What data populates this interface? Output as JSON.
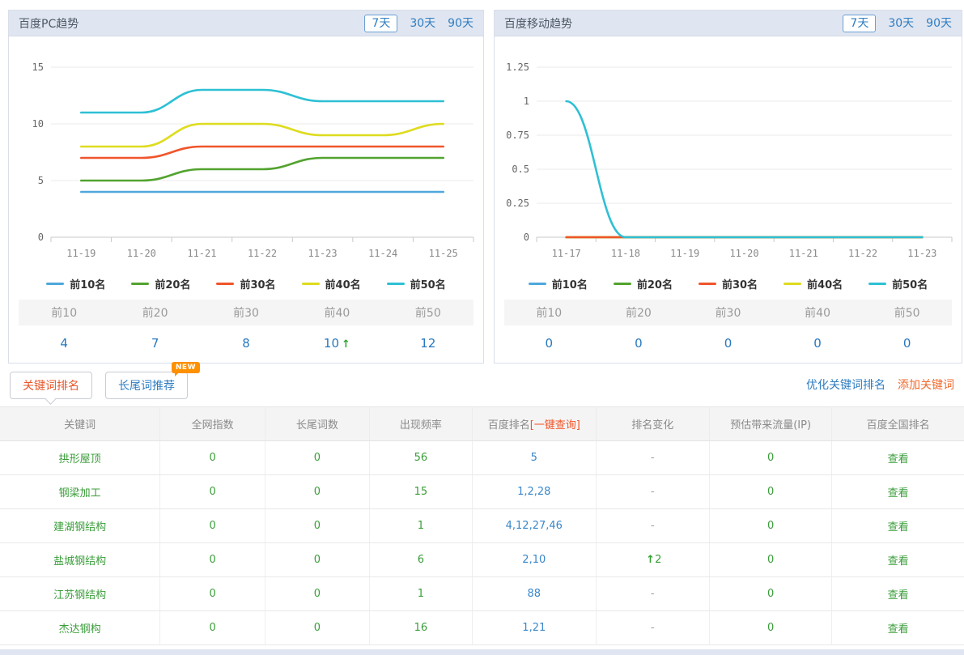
{
  "panels": [
    {
      "title": "百度PC趋势",
      "range_buttons": [
        {
          "label": "7天",
          "active": true
        },
        {
          "label": "30天",
          "active": false
        },
        {
          "label": "90天",
          "active": false
        }
      ],
      "chart_index": 0,
      "summary": {
        "headers": [
          "前10",
          "前20",
          "前30",
          "前40",
          "前50"
        ],
        "values": [
          {
            "text": "4"
          },
          {
            "text": "7"
          },
          {
            "text": "8"
          },
          {
            "text": "10",
            "arrow": "up"
          },
          {
            "text": "12"
          }
        ]
      }
    },
    {
      "title": "百度移动趋势",
      "range_buttons": [
        {
          "label": "7天",
          "active": true
        },
        {
          "label": "30天",
          "active": false
        },
        {
          "label": "90天",
          "active": false
        }
      ],
      "chart_index": 1,
      "summary": {
        "headers": [
          "前10",
          "前20",
          "前30",
          "前40",
          "前50"
        ],
        "values": [
          {
            "text": "0"
          },
          {
            "text": "0"
          },
          {
            "text": "0"
          },
          {
            "text": "0"
          },
          {
            "text": "0"
          }
        ]
      }
    }
  ],
  "chart_data": [
    {
      "type": "line",
      "title": "百度PC趋势",
      "categories": [
        "11-19",
        "11-20",
        "11-21",
        "11-22",
        "11-23",
        "11-24",
        "11-25"
      ],
      "yticks": [
        0,
        5,
        10,
        15
      ],
      "ylim": [
        0,
        15
      ],
      "grid": true,
      "legend_position": "bottom",
      "series": [
        {
          "name": "前10名",
          "color": "#4fa8dc",
          "values": [
            4,
            4,
            4,
            4,
            4,
            4,
            4
          ]
        },
        {
          "name": "前20名",
          "color": "#52a32f",
          "values": [
            5,
            5,
            6,
            6,
            7,
            7,
            7
          ]
        },
        {
          "name": "前30名",
          "color": "#f0552b",
          "values": [
            7,
            7,
            8,
            8,
            8,
            8,
            8
          ]
        },
        {
          "name": "前40名",
          "color": "#dedc1f",
          "values": [
            8,
            8,
            10,
            10,
            9,
            9,
            10
          ]
        },
        {
          "name": "前50名",
          "color": "#2ec0d4",
          "values": [
            11,
            11,
            13,
            13,
            12,
            12,
            12
          ]
        }
      ],
      "draw_order": [
        0,
        1,
        2,
        3,
        4
      ]
    },
    {
      "type": "line",
      "title": "百度移动趋势",
      "categories": [
        "11-17",
        "11-18",
        "11-19",
        "11-20",
        "11-21",
        "11-22",
        "11-23"
      ],
      "yticks": [
        0,
        0.25,
        0.5,
        0.75,
        1,
        1.25
      ],
      "ylim": [
        0,
        1.25
      ],
      "grid": true,
      "legend_position": "bottom",
      "series": [
        {
          "name": "前10名",
          "color": "#4fa8dc",
          "values": [
            0,
            0,
            0,
            0,
            0,
            0,
            0
          ]
        },
        {
          "name": "前20名",
          "color": "#52a32f",
          "values": [
            0,
            0,
            0,
            0,
            0,
            0,
            0
          ]
        },
        {
          "name": "前30名",
          "color": "#f0552b",
          "values": [
            0,
            0,
            0,
            0,
            0,
            0,
            0
          ]
        },
        {
          "name": "前40名",
          "color": "#dedc1f",
          "values": [
            0,
            0,
            0,
            0,
            0,
            0,
            0
          ]
        },
        {
          "name": "前50名",
          "color": "#2ec0d4",
          "values": [
            1,
            0,
            0,
            0,
            0,
            0,
            0
          ]
        }
      ],
      "draw_order": [
        0,
        1,
        3,
        2,
        4
      ]
    }
  ],
  "keyword_section": {
    "tabs": [
      {
        "label": "关键词排名",
        "active": true
      },
      {
        "label": "长尾词推荐",
        "active": false,
        "badge": "NEW"
      }
    ],
    "actions": [
      {
        "label": "优化关键词排名",
        "style": "blue"
      },
      {
        "label": "添加关键词",
        "style": "orange"
      }
    ],
    "table": {
      "headers": [
        {
          "text": "关键词"
        },
        {
          "text": "全网指数"
        },
        {
          "text": "长尾词数"
        },
        {
          "text": "出现频率"
        },
        {
          "text": "百度排名",
          "highlight": "[一键查询]"
        },
        {
          "text": "排名变化"
        },
        {
          "text": "预估带来流量(IP)"
        },
        {
          "text": "百度全国排名"
        }
      ],
      "col_widths": [
        "16.6%",
        "10.9%",
        "10.8%",
        "10.7%",
        "12.8%",
        "11.8%",
        "12.7%",
        "13.7%"
      ],
      "rows": [
        {
          "keyword": "拱形屋顶",
          "index": "0",
          "longtail": "0",
          "frequency": "56",
          "baidu_rank": "5",
          "change": {
            "text": "-"
          },
          "traffic": "0",
          "action": "查看"
        },
        {
          "keyword": "钢梁加工",
          "index": "0",
          "longtail": "0",
          "frequency": "15",
          "baidu_rank": "1,2,28",
          "change": {
            "text": "-"
          },
          "traffic": "0",
          "action": "查看"
        },
        {
          "keyword": "建湖钢结构",
          "index": "0",
          "longtail": "0",
          "frequency": "1",
          "baidu_rank": "4,12,27,46",
          "change": {
            "text": "-"
          },
          "traffic": "0",
          "action": "查看"
        },
        {
          "keyword": "盐城钢结构",
          "index": "0",
          "longtail": "0",
          "frequency": "6",
          "baidu_rank": "2,10",
          "change": {
            "text": "2",
            "arrow": "up"
          },
          "traffic": "0",
          "action": "查看"
        },
        {
          "keyword": "江苏钢结构",
          "index": "0",
          "longtail": "0",
          "frequency": "1",
          "baidu_rank": "88",
          "change": {
            "text": "-"
          },
          "traffic": "0",
          "action": "查看"
        },
        {
          "keyword": "杰达钢构",
          "index": "0",
          "longtail": "0",
          "frequency": "16",
          "baidu_rank": "1,21",
          "change": {
            "text": "-"
          },
          "traffic": "0",
          "action": "查看"
        }
      ]
    }
  },
  "colors": {
    "accent_blue": "#2f7dc1",
    "accent_orange": "#f06a2d",
    "accent_green": "#3a9d3a",
    "header_bg": "#e0e6f1"
  }
}
